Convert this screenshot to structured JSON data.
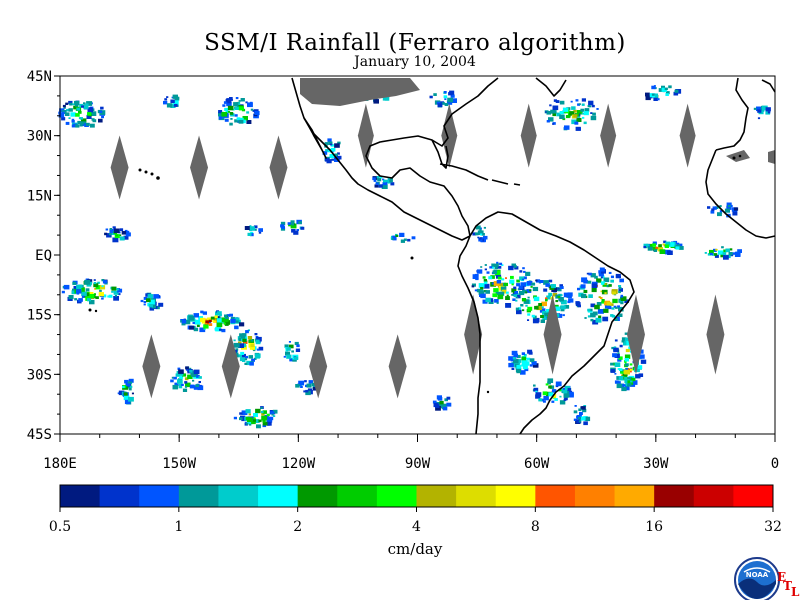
{
  "title": "SSM/I Rainfall (Ferraro algorithm)",
  "subtitle": "January 10, 2004",
  "map": {
    "lon_range": [
      -180,
      0
    ],
    "lat_range": [
      -45,
      45
    ],
    "lat_labels": [
      "45N",
      "30N",
      "15N",
      "EQ",
      "15S",
      "30S",
      "45S"
    ],
    "lon_labels": [
      "180E",
      "150W",
      "120W",
      "90W",
      "60W",
      "30W",
      "0"
    ],
    "land_color": "#000000",
    "no_data_color": "#666666"
  },
  "colorbar": {
    "units": "cm/day",
    "tick_labels": [
      "0.5",
      "1",
      "2",
      "4",
      "8",
      "16",
      "32"
    ],
    "colors": [
      "#001a80",
      "#0033cc",
      "#0055ff",
      "#009999",
      "#00cccc",
      "#00ffff",
      "#009900",
      "#00cc00",
      "#00ff00",
      "#b3b300",
      "#dddd00",
      "#ffff00",
      "#ff5500",
      "#ff8000",
      "#ffaa00",
      "#990000",
      "#cc0000",
      "#ff0000"
    ]
  },
  "logo": {
    "name": "noaa-logo",
    "text": "NOAA",
    "letters": [
      "E",
      "T",
      "L"
    ]
  }
}
